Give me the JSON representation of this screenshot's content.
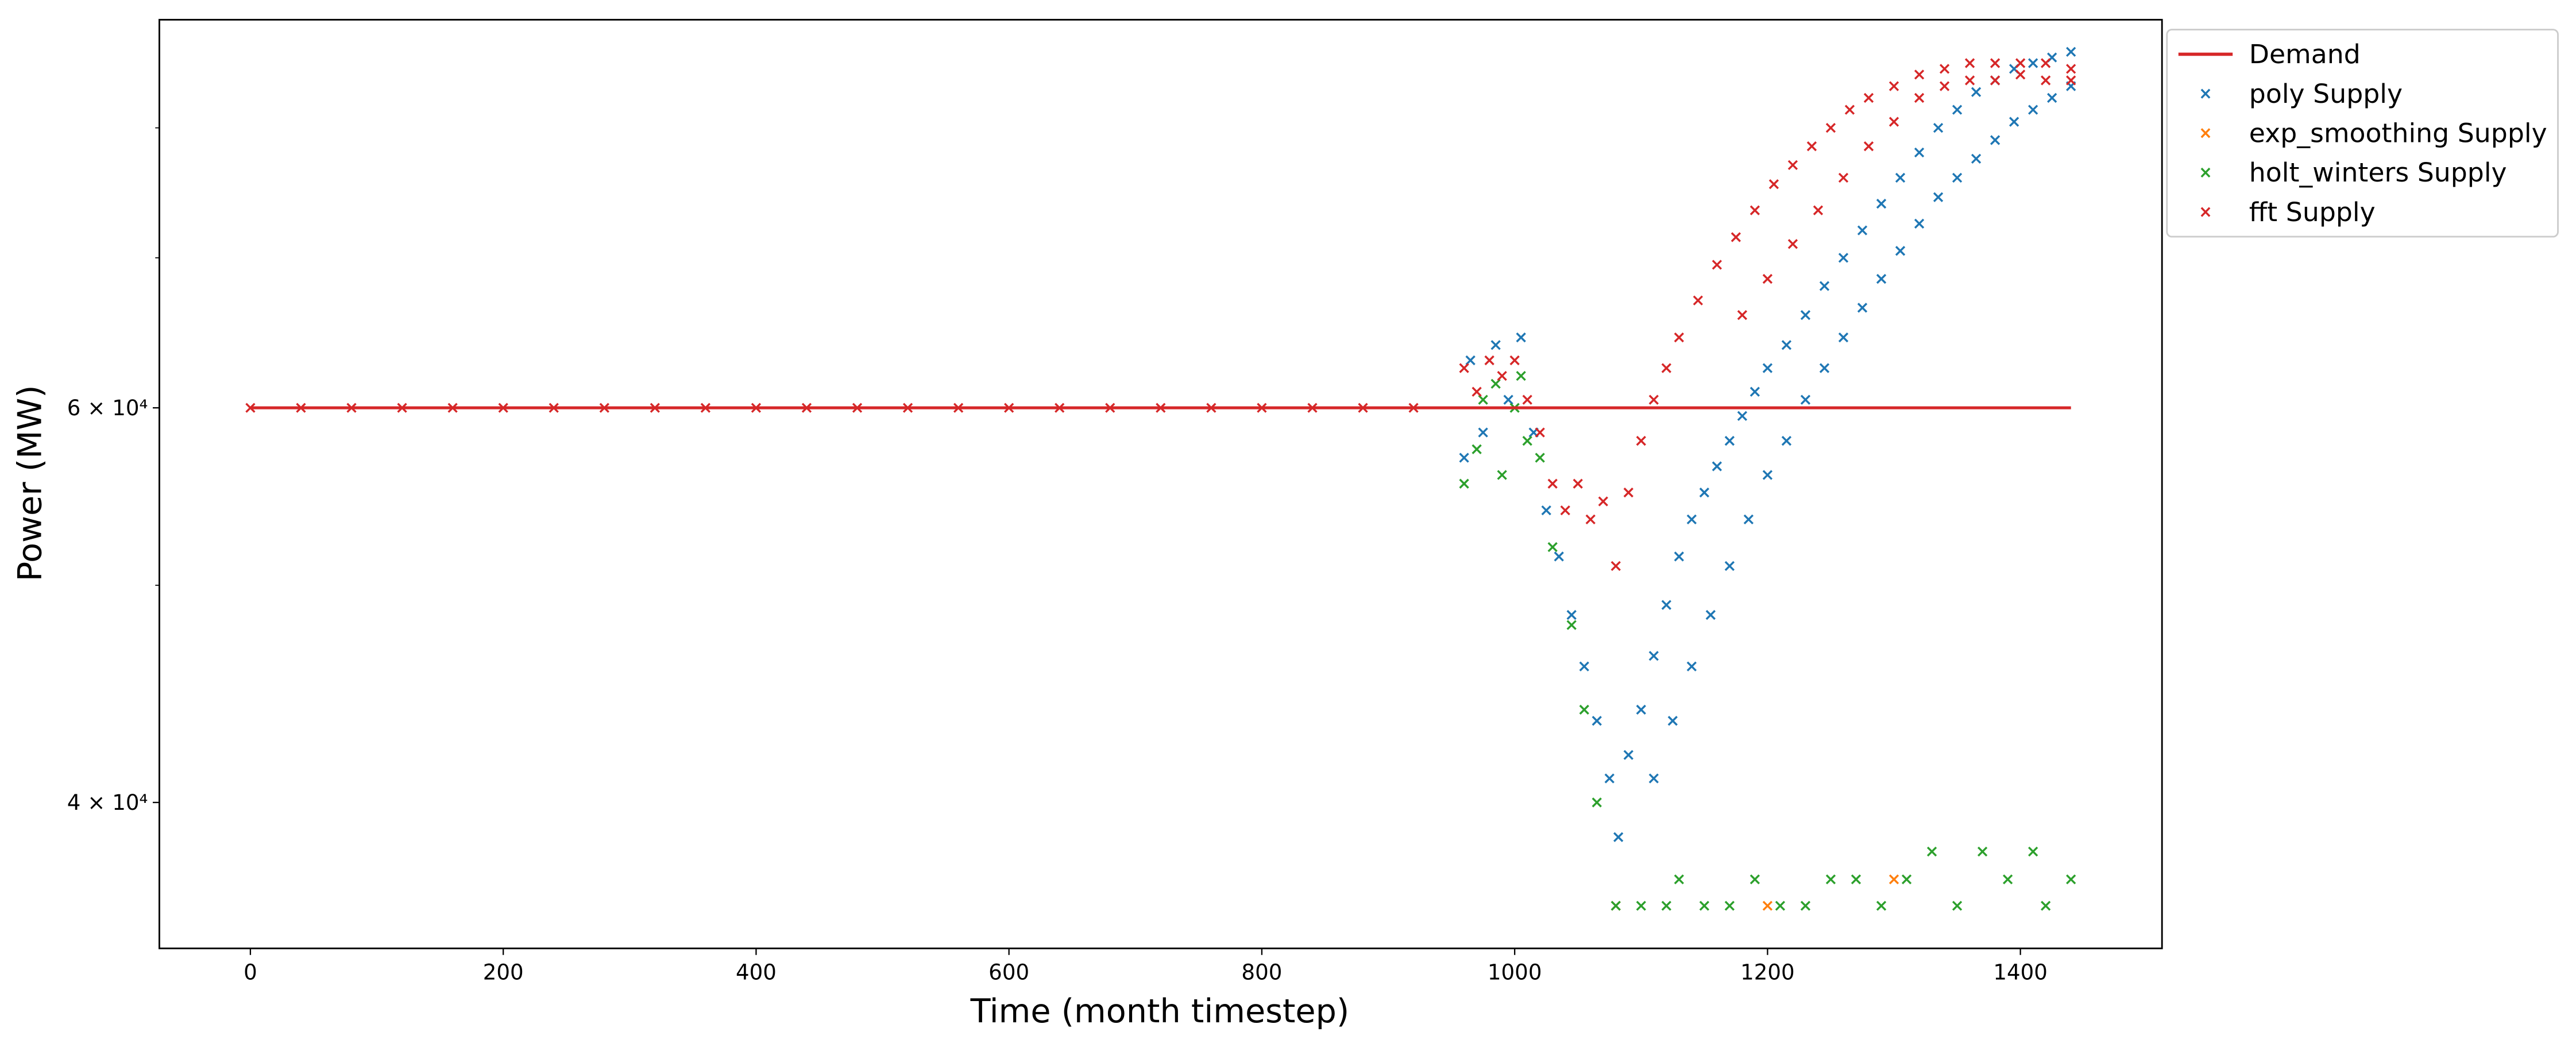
{
  "chart_data": {
    "type": "scatter",
    "xlabel": "Time (month timestep)",
    "ylabel": "Power (MW)",
    "xlim": [
      -72,
      1512
    ],
    "xticks": [
      0,
      200,
      400,
      600,
      800,
      1000,
      1200,
      1400
    ],
    "ylim": [
      34430,
      89400
    ],
    "yscale": "log",
    "yticks": [
      {
        "value": 40000,
        "label": "4 × 10⁴"
      },
      {
        "value": 60000,
        "label": "6 × 10⁴"
      }
    ],
    "yminorticks": [
      50000,
      70000,
      80000
    ],
    "legend": "outside upper right",
    "series": [
      {
        "name": "Demand",
        "kind": "line",
        "color": "#d62728",
        "x": [
          0,
          1440
        ],
        "values": [
          60000,
          60000
        ]
      },
      {
        "name": "poly Supply",
        "kind": "marker",
        "color": "#1f77b4",
        "x": [
          960,
          965,
          975,
          985,
          995,
          1005,
          1015,
          1025,
          1035,
          1045,
          1055,
          1065,
          1075,
          1082,
          1090,
          1100,
          1110,
          1120,
          1130,
          1140,
          1150,
          1160,
          1170,
          1180,
          1190,
          1200,
          1215,
          1230,
          1245,
          1260,
          1275,
          1290,
          1305,
          1320,
          1335,
          1350,
          1365,
          1380,
          1395,
          1410,
          1425,
          1440,
          1110,
          1125,
          1140,
          1155,
          1170,
          1185,
          1200,
          1215,
          1230,
          1245,
          1260,
          1275,
          1290,
          1305,
          1320,
          1335,
          1350,
          1365,
          1380,
          1395,
          1410,
          1425,
          1440
        ],
        "values": [
          57000,
          63000,
          58500,
          64000,
          60500,
          64500,
          58500,
          54000,
          51500,
          48500,
          46000,
          43500,
          41000,
          38600,
          42000,
          44000,
          46500,
          49000,
          51500,
          53500,
          55000,
          56500,
          58000,
          59500,
          61000,
          62500,
          64000,
          66000,
          68000,
          70000,
          72000,
          74000,
          76000,
          78000,
          80000,
          81500,
          83000,
          84000,
          85000,
          85500,
          86000,
          86500,
          41000,
          43500,
          46000,
          48500,
          51000,
          53500,
          56000,
          58000,
          60500,
          62500,
          64500,
          66500,
          68500,
          70500,
          72500,
          74500,
          76000,
          77500,
          79000,
          80500,
          81500,
          82500,
          83500
        ]
      },
      {
        "name": "exp_smoothing Supply",
        "kind": "marker",
        "color": "#ff7f0e",
        "x": [
          1080,
          1200,
          1300
        ],
        "values": [
          35970,
          35970,
          36960
        ]
      },
      {
        "name": "holt_winters Supply",
        "kind": "marker",
        "color": "#2ca02c",
        "x": [
          960,
          970,
          975,
          985,
          990,
          1000,
          1005,
          1010,
          1020,
          1030,
          1045,
          1055,
          1065,
          1080,
          1100,
          1120,
          1130,
          1150,
          1170,
          1190,
          1210,
          1230,
          1250,
          1270,
          1290,
          1310,
          1330,
          1350,
          1370,
          1390,
          1410,
          1420,
          1440
        ],
        "values": [
          55500,
          57500,
          60500,
          61500,
          56000,
          60000,
          62000,
          58000,
          57000,
          52000,
          48000,
          44000,
          40000,
          35970,
          35970,
          35970,
          36960,
          35970,
          35970,
          36960,
          35970,
          35970,
          36960,
          36960,
          35970,
          36960,
          38030,
          35970,
          38030,
          36960,
          38030,
          35970,
          36960
        ]
      },
      {
        "name": "fft Supply",
        "kind": "marker",
        "color": "#d62728",
        "x": [
          0,
          40,
          80,
          120,
          160,
          200,
          240,
          280,
          320,
          360,
          400,
          440,
          480,
          520,
          560,
          600,
          640,
          680,
          720,
          760,
          800,
          840,
          880,
          920,
          960,
          970,
          980,
          990,
          1000,
          1010,
          1020,
          1030,
          1040,
          1050,
          1060,
          1070,
          1080,
          1090,
          1100,
          1110,
          1120,
          1130,
          1145,
          1160,
          1175,
          1190,
          1205,
          1220,
          1235,
          1250,
          1265,
          1280,
          1300,
          1320,
          1340,
          1360,
          1380,
          1400,
          1420,
          1440,
          1180,
          1200,
          1220,
          1240,
          1260,
          1280,
          1300,
          1320,
          1340,
          1360,
          1380,
          1400,
          1420,
          1440
        ],
        "values": [
          60000,
          60000,
          60000,
          60000,
          60000,
          60000,
          60000,
          60000,
          60000,
          60000,
          60000,
          60000,
          60000,
          60000,
          60000,
          60000,
          60000,
          60000,
          60000,
          60000,
          60000,
          60000,
          60000,
          60000,
          62500,
          61000,
          63000,
          62000,
          63000,
          60500,
          58500,
          55500,
          54000,
          55500,
          53500,
          54500,
          51000,
          55000,
          58000,
          60500,
          62500,
          64500,
          67000,
          69500,
          71500,
          73500,
          75500,
          77000,
          78500,
          80000,
          81500,
          82500,
          83500,
          84500,
          85000,
          85500,
          85500,
          85500,
          85500,
          85000,
          66000,
          68500,
          71000,
          73500,
          76000,
          78500,
          80500,
          82500,
          83500,
          84000,
          84000,
          84500,
          84000,
          84000
        ]
      }
    ]
  }
}
